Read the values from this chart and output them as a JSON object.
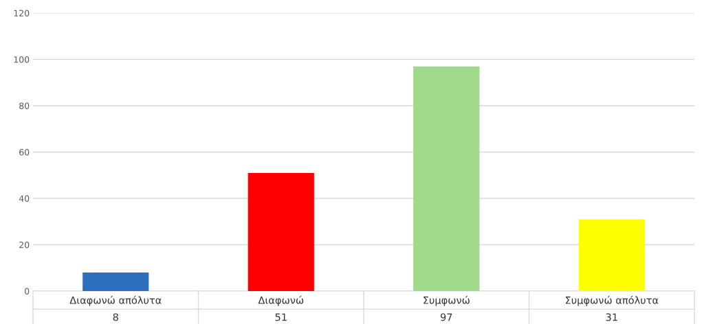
{
  "chart_data": {
    "type": "bar",
    "categories": [
      "Διαφωνώ απόλυτα",
      "Διαφωνώ",
      "Συμφωνώ",
      "Συμφωνώ απόλυτα"
    ],
    "values": [
      8,
      51,
      97,
      31
    ],
    "colors": [
      "#2e6fbd",
      "#ff0000",
      "#a0d98a",
      "#ffff00"
    ],
    "ylim": [
      0,
      120
    ],
    "yticks": [
      0,
      20,
      40,
      60,
      80,
      100,
      120
    ],
    "grid": "y",
    "data_labels": true
  }
}
